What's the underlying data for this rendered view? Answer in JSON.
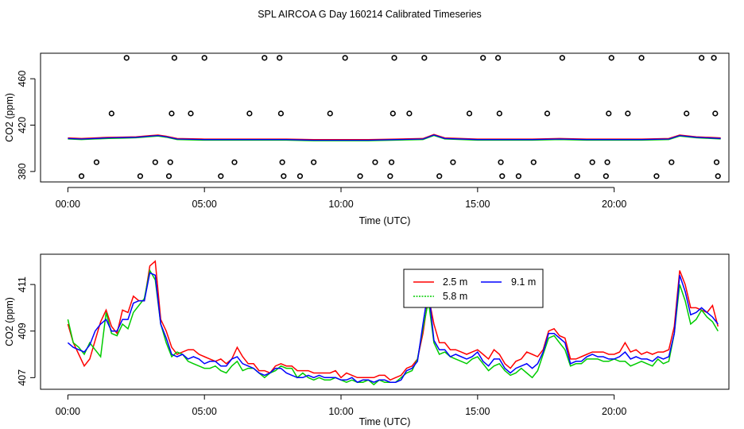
{
  "page_title": "SPL AIRCOA G  Day 160214  Calibrated Timeseries",
  "chart_data": [
    {
      "type": "line",
      "panel": "top",
      "xlabel": "Time (UTC)",
      "ylabel": "CO2 (ppm)",
      "xlim": [
        -1.0,
        24.2
      ],
      "ylim": [
        371,
        482
      ],
      "x_ticks": [
        0,
        5,
        10,
        15,
        20
      ],
      "x_tick_labels": [
        "00:00",
        "05:00",
        "10:00",
        "15:00",
        "20:00"
      ],
      "y_ticks": [
        380,
        420,
        460
      ],
      "y_tick_labels": [
        "380",
        "420",
        "460"
      ],
      "line_x": [
        0,
        0.5,
        1,
        1.5,
        2,
        2.5,
        3,
        3.3,
        3.6,
        4,
        5,
        6,
        7,
        8,
        9,
        10,
        11,
        12,
        13,
        13.4,
        13.8,
        15,
        16,
        17,
        18,
        19,
        20,
        21,
        22,
        22.4,
        23,
        23.9
      ],
      "line_y": [
        408.5,
        408,
        408.5,
        409,
        409.2,
        409.5,
        410.5,
        411,
        410,
        408,
        407.5,
        407.5,
        407.5,
        407.5,
        407,
        407,
        407,
        407.5,
        408,
        411.5,
        408.5,
        407.5,
        407.5,
        407.5,
        408,
        407.5,
        407.5,
        407.5,
        408,
        411,
        409.5,
        408.5
      ],
      "series": [
        {
          "name": "2.5 m",
          "color": "#ff0000"
        },
        {
          "name": "5.8 m",
          "color": "#00cc00"
        },
        {
          "name": "9.1 m",
          "color": "#0000ff"
        }
      ],
      "scatter_points": [
        [
          0.5,
          376
        ],
        [
          1.05,
          388
        ],
        [
          1.6,
          430
        ],
        [
          2.15,
          478
        ],
        [
          2.65,
          376
        ],
        [
          3.2,
          388
        ],
        [
          3.7,
          376
        ],
        [
          3.75,
          388
        ],
        [
          3.8,
          430
        ],
        [
          3.9,
          478
        ],
        [
          4.5,
          430
        ],
        [
          5.0,
          478
        ],
        [
          5.6,
          376
        ],
        [
          6.1,
          388
        ],
        [
          6.65,
          430
        ],
        [
          7.2,
          478
        ],
        [
          7.75,
          478
        ],
        [
          7.8,
          430
        ],
        [
          7.85,
          388
        ],
        [
          7.9,
          376
        ],
        [
          8.5,
          376
        ],
        [
          9.0,
          388
        ],
        [
          9.6,
          430
        ],
        [
          10.15,
          478
        ],
        [
          10.7,
          376
        ],
        [
          11.25,
          388
        ],
        [
          11.8,
          376
        ],
        [
          11.85,
          388
        ],
        [
          11.9,
          430
        ],
        [
          11.95,
          478
        ],
        [
          12.5,
          430
        ],
        [
          13.05,
          478
        ],
        [
          13.6,
          376
        ],
        [
          14.1,
          388
        ],
        [
          14.7,
          430
        ],
        [
          15.2,
          478
        ],
        [
          15.75,
          478
        ],
        [
          15.8,
          430
        ],
        [
          15.85,
          388
        ],
        [
          15.9,
          376
        ],
        [
          16.5,
          376
        ],
        [
          17.05,
          388
        ],
        [
          17.55,
          430
        ],
        [
          18.1,
          478
        ],
        [
          18.65,
          376
        ],
        [
          19.2,
          388
        ],
        [
          19.7,
          376
        ],
        [
          19.75,
          388
        ],
        [
          19.8,
          430
        ],
        [
          19.9,
          478
        ],
        [
          20.5,
          430
        ],
        [
          21.0,
          478
        ],
        [
          21.55,
          376
        ],
        [
          22.1,
          388
        ],
        [
          22.65,
          430
        ],
        [
          23.2,
          478
        ],
        [
          23.65,
          478
        ],
        [
          23.7,
          430
        ],
        [
          23.75,
          388
        ],
        [
          23.8,
          376
        ]
      ]
    },
    {
      "type": "line",
      "panel": "bottom",
      "xlabel": "Time (UTC)",
      "ylabel": "CO2 (ppm)",
      "xlim": [
        -1.0,
        24.2
      ],
      "ylim": [
        406.5,
        412.3
      ],
      "x_ticks": [
        0,
        5,
        10,
        15,
        20
      ],
      "x_tick_labels": [
        "00:00",
        "05:00",
        "10:00",
        "15:00",
        "20:00"
      ],
      "y_ticks": [
        407,
        409,
        411
      ],
      "y_tick_labels": [
        "407",
        "409",
        "411"
      ],
      "x": [
        0,
        0.2,
        0.4,
        0.6,
        0.8,
        1.0,
        1.2,
        1.4,
        1.6,
        1.8,
        2.0,
        2.2,
        2.4,
        2.6,
        2.8,
        3.0,
        3.2,
        3.4,
        3.6,
        3.8,
        4.0,
        4.2,
        4.4,
        4.6,
        4.8,
        5.0,
        5.2,
        5.4,
        5.6,
        5.8,
        6.0,
        6.2,
        6.4,
        6.6,
        6.8,
        7.0,
        7.2,
        7.4,
        7.6,
        7.8,
        8.0,
        8.2,
        8.4,
        8.6,
        8.8,
        9.0,
        9.2,
        9.4,
        9.6,
        9.8,
        10.0,
        10.2,
        10.4,
        10.6,
        10.8,
        11.0,
        11.2,
        11.4,
        11.6,
        11.8,
        12.0,
        12.2,
        12.4,
        12.6,
        12.8,
        13.0,
        13.2,
        13.4,
        13.6,
        13.8,
        14.0,
        14.2,
        14.4,
        14.6,
        14.8,
        15.0,
        15.2,
        15.4,
        15.6,
        15.8,
        16.0,
        16.2,
        16.4,
        16.6,
        16.8,
        17.0,
        17.2,
        17.4,
        17.6,
        17.8,
        18.0,
        18.2,
        18.4,
        18.6,
        18.8,
        19.0,
        19.2,
        19.4,
        19.6,
        19.8,
        20.0,
        20.2,
        20.4,
        20.6,
        20.8,
        21.0,
        21.2,
        21.4,
        21.6,
        21.8,
        22.0,
        22.2,
        22.4,
        22.6,
        22.8,
        23.0,
        23.2,
        23.4,
        23.6,
        23.8
      ],
      "series": [
        {
          "name": "2.5 m",
          "color": "#ff0000",
          "values": [
            409.3,
            408.5,
            408.0,
            407.5,
            407.8,
            408.6,
            409.4,
            409.9,
            409.2,
            408.9,
            409.9,
            409.8,
            410.5,
            410.3,
            410.3,
            411.8,
            412.0,
            409.5,
            409.0,
            408.3,
            408.0,
            408.1,
            408.2,
            408.2,
            408.0,
            407.9,
            407.8,
            407.7,
            407.8,
            407.6,
            407.8,
            408.3,
            407.9,
            407.6,
            407.6,
            407.3,
            407.3,
            407.2,
            407.5,
            407.6,
            407.5,
            407.5,
            407.3,
            407.3,
            407.3,
            407.2,
            407.2,
            407.2,
            407.2,
            407.3,
            407.0,
            407.2,
            407.1,
            407.0,
            407.0,
            407.0,
            407.0,
            407.1,
            407.1,
            406.9,
            407.0,
            407.1,
            407.4,
            407.5,
            407.8,
            408.9,
            410.5,
            409.3,
            408.5,
            408.5,
            408.2,
            408.2,
            408.1,
            408.0,
            408.1,
            408.2,
            408.0,
            407.8,
            408.2,
            408.0,
            407.6,
            407.4,
            407.7,
            407.8,
            408.1,
            408.0,
            407.9,
            408.2,
            409.0,
            409.1,
            408.8,
            408.7,
            407.8,
            407.8,
            407.9,
            408.0,
            408.1,
            408.1,
            408.1,
            408.0,
            408.0,
            408.1,
            408.5,
            408.1,
            408.2,
            408.0,
            408.1,
            408.0,
            408.1,
            408.1,
            408.2,
            409.2,
            411.6,
            411.0,
            410.0,
            410.0,
            409.9,
            409.8,
            410.1,
            409.2
          ]
        },
        {
          "name": "5.8 m",
          "color": "#00cc00",
          "values": [
            409.5,
            408.5,
            408.3,
            408.0,
            408.5,
            408.2,
            407.9,
            409.8,
            408.9,
            408.8,
            409.3,
            409.1,
            409.8,
            410.1,
            410.4,
            411.6,
            411.2,
            409.3,
            408.5,
            407.9,
            408.1,
            408.0,
            407.7,
            407.6,
            407.5,
            407.4,
            407.4,
            407.5,
            407.3,
            407.2,
            407.5,
            407.7,
            407.3,
            407.4,
            407.4,
            407.2,
            407.0,
            407.2,
            407.3,
            407.5,
            407.4,
            407.4,
            407.0,
            407.2,
            407.0,
            406.9,
            407.0,
            406.9,
            406.9,
            407.0,
            406.9,
            406.8,
            406.9,
            406.8,
            406.8,
            406.9,
            406.7,
            406.9,
            406.8,
            406.8,
            406.8,
            407.0,
            407.2,
            407.3,
            407.8,
            409.1,
            410.3,
            408.5,
            408.0,
            408.1,
            407.9,
            407.8,
            407.7,
            407.6,
            407.8,
            407.9,
            407.6,
            407.3,
            407.5,
            407.6,
            407.3,
            407.1,
            407.2,
            407.4,
            407.2,
            407.0,
            407.3,
            408.0,
            408.7,
            408.8,
            408.5,
            408.2,
            407.5,
            407.6,
            407.6,
            407.8,
            407.8,
            407.8,
            407.7,
            407.7,
            407.8,
            407.7,
            407.7,
            407.5,
            407.6,
            407.7,
            407.6,
            407.5,
            407.8,
            407.6,
            407.7,
            408.9,
            411.0,
            410.3,
            409.3,
            409.5,
            409.9,
            409.6,
            409.4,
            409.0
          ]
        },
        {
          "name": "9.1 m",
          "color": "#0000ff",
          "values": [
            408.5,
            408.3,
            408.2,
            408.1,
            408.4,
            409.0,
            409.3,
            409.5,
            409.0,
            409.0,
            409.5,
            409.5,
            410.2,
            410.3,
            410.3,
            411.5,
            411.4,
            409.3,
            408.7,
            408.0,
            407.9,
            408.0,
            407.8,
            407.9,
            407.8,
            407.6,
            407.7,
            407.7,
            407.5,
            407.5,
            407.8,
            407.9,
            407.6,
            407.5,
            407.4,
            407.2,
            407.1,
            407.2,
            407.4,
            407.4,
            407.2,
            407.1,
            407.0,
            407.0,
            407.1,
            407.0,
            407.1,
            407.0,
            407.0,
            407.0,
            406.9,
            406.9,
            407.0,
            406.8,
            406.9,
            406.9,
            406.8,
            406.9,
            406.9,
            406.8,
            406.8,
            406.9,
            407.3,
            407.4,
            407.7,
            409.3,
            410.8,
            408.6,
            408.2,
            408.2,
            407.9,
            408.0,
            407.9,
            407.8,
            407.9,
            408.1,
            407.7,
            407.5,
            407.8,
            407.8,
            407.4,
            407.2,
            407.4,
            407.5,
            407.6,
            407.4,
            407.6,
            408.1,
            408.9,
            408.9,
            408.7,
            408.5,
            407.6,
            407.7,
            407.7,
            407.9,
            408.0,
            407.9,
            407.9,
            407.8,
            407.8,
            407.9,
            408.1,
            407.8,
            407.9,
            407.8,
            407.8,
            407.7,
            407.9,
            407.8,
            407.9,
            408.9,
            411.4,
            410.7,
            409.7,
            409.8,
            410.0,
            409.8,
            409.6,
            409.3
          ]
        }
      ]
    }
  ]
}
